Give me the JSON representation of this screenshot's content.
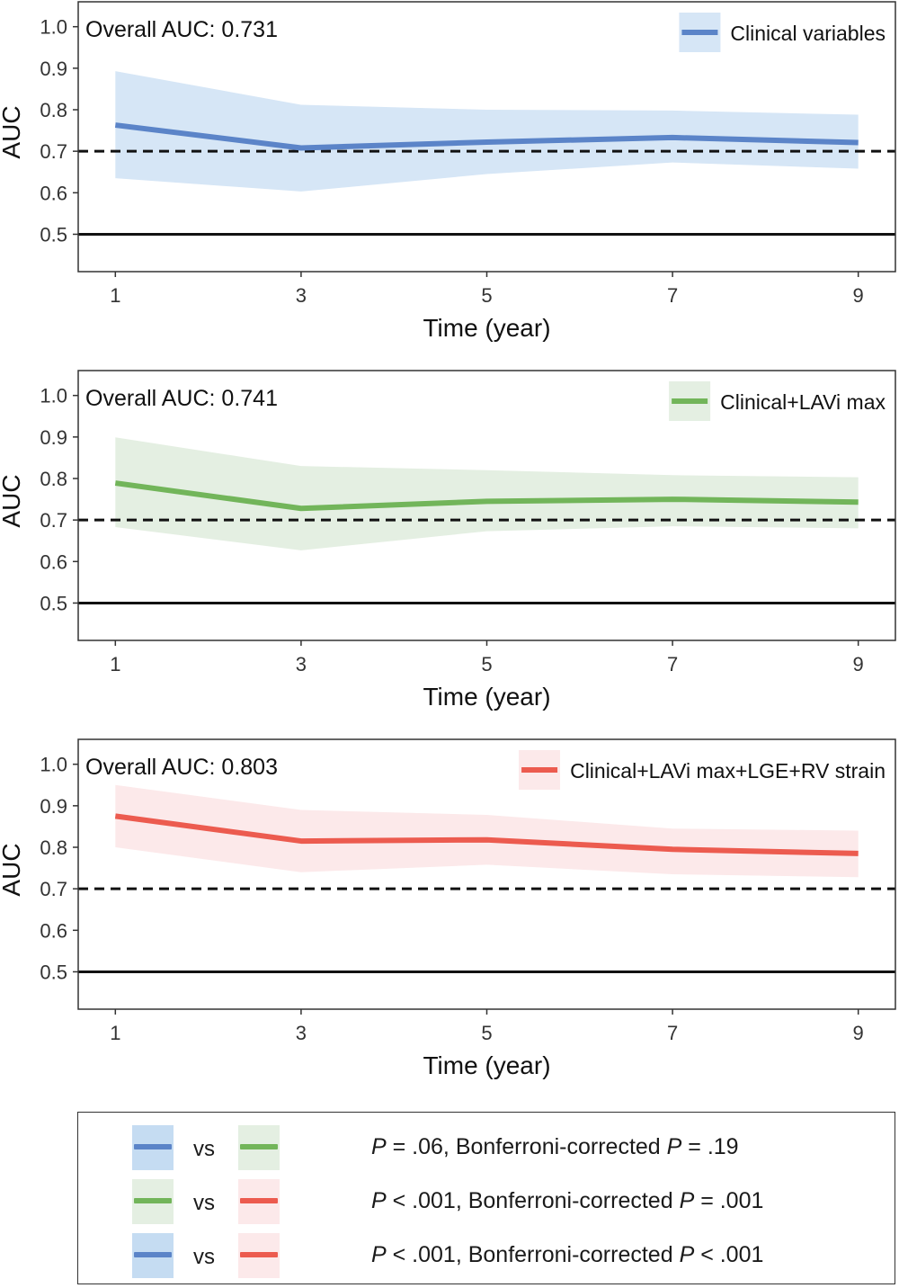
{
  "chart_data": [
    {
      "type": "line",
      "annotation": "Overall AUC: 0.731",
      "legend": "Clinical variables",
      "legend_position": "top-right",
      "color": "#5b84c8",
      "band_color": "#d6e6f6",
      "xlabel": "Time (year)",
      "ylabel": "AUC",
      "x": [
        1,
        3,
        5,
        7,
        9
      ],
      "x_ticks": [
        "1",
        "3",
        "5",
        "7",
        "9"
      ],
      "y_ticks": [
        "0.5",
        "0.6",
        "0.7",
        "0.8",
        "0.9",
        "1.0"
      ],
      "ylim": [
        0.41,
        1.06
      ],
      "values": [
        0.763,
        0.708,
        0.722,
        0.733,
        0.721
      ],
      "lower": [
        0.635,
        0.603,
        0.645,
        0.673,
        0.658
      ],
      "upper": [
        0.893,
        0.812,
        0.8,
        0.798,
        0.788
      ],
      "reference_lines": [
        0.7,
        0.5
      ]
    },
    {
      "type": "line",
      "annotation": "Overall AUC: 0.741",
      "legend": "Clinical+LAVi max",
      "legend_position": "top-right",
      "color": "#72b55a",
      "band_color": "#e4efe2",
      "xlabel": "Time (year)",
      "ylabel": "AUC",
      "x": [
        1,
        3,
        5,
        7,
        9
      ],
      "x_ticks": [
        "1",
        "3",
        "5",
        "7",
        "9"
      ],
      "y_ticks": [
        "0.5",
        "0.6",
        "0.7",
        "0.8",
        "0.9",
        "1.0"
      ],
      "ylim": [
        0.41,
        1.06
      ],
      "values": [
        0.789,
        0.728,
        0.745,
        0.75,
        0.743
      ],
      "lower": [
        0.683,
        0.627,
        0.673,
        0.685,
        0.68
      ],
      "upper": [
        0.899,
        0.83,
        0.82,
        0.808,
        0.803
      ],
      "reference_lines": [
        0.7,
        0.5
      ]
    },
    {
      "type": "line",
      "annotation": "Overall AUC: 0.803",
      "legend": "Clinical+LAVi max+LGE+RV strain",
      "legend_position": "top-right",
      "color": "#ec5b4f",
      "band_color": "#fce9ea",
      "xlabel": "Time (year)",
      "ylabel": "AUC",
      "x": [
        1,
        3,
        5,
        7,
        9
      ],
      "x_ticks": [
        "1",
        "3",
        "5",
        "7",
        "9"
      ],
      "y_ticks": [
        "0.5",
        "0.6",
        "0.7",
        "0.8",
        "0.9",
        "1.0"
      ],
      "ylim": [
        0.41,
        1.06
      ],
      "values": [
        0.875,
        0.815,
        0.818,
        0.795,
        0.785
      ],
      "lower": [
        0.8,
        0.74,
        0.758,
        0.735,
        0.728
      ],
      "upper": [
        0.95,
        0.89,
        0.878,
        0.845,
        0.84
      ],
      "reference_lines": [
        0.7,
        0.5
      ]
    }
  ],
  "comparisons": [
    {
      "left": "#5b84c8",
      "left_bg": "#c5dcf2",
      "right": "#72b55a",
      "right_bg": "#e4efe2",
      "vs": "vs",
      "p_label": "P",
      "p_val": " = .06, Bonferroni-corrected ",
      "bp_label": "P",
      "bp_val": " = .19"
    },
    {
      "left": "#72b55a",
      "left_bg": "#e4efe2",
      "right": "#ec5b4f",
      "right_bg": "#fce9ea",
      "vs": "vs",
      "p_label": "P",
      "p_val": " < .001, Bonferroni-corrected ",
      "bp_label": "P",
      "bp_val": " = .001"
    },
    {
      "left": "#5b84c8",
      "left_bg": "#c5dcf2",
      "right": "#ec5b4f",
      "right_bg": "#fce9ea",
      "vs": "vs",
      "p_label": "P",
      "p_val": " < .001, Bonferroni-corrected ",
      "bp_label": "P",
      "bp_val": " < .001"
    }
  ]
}
